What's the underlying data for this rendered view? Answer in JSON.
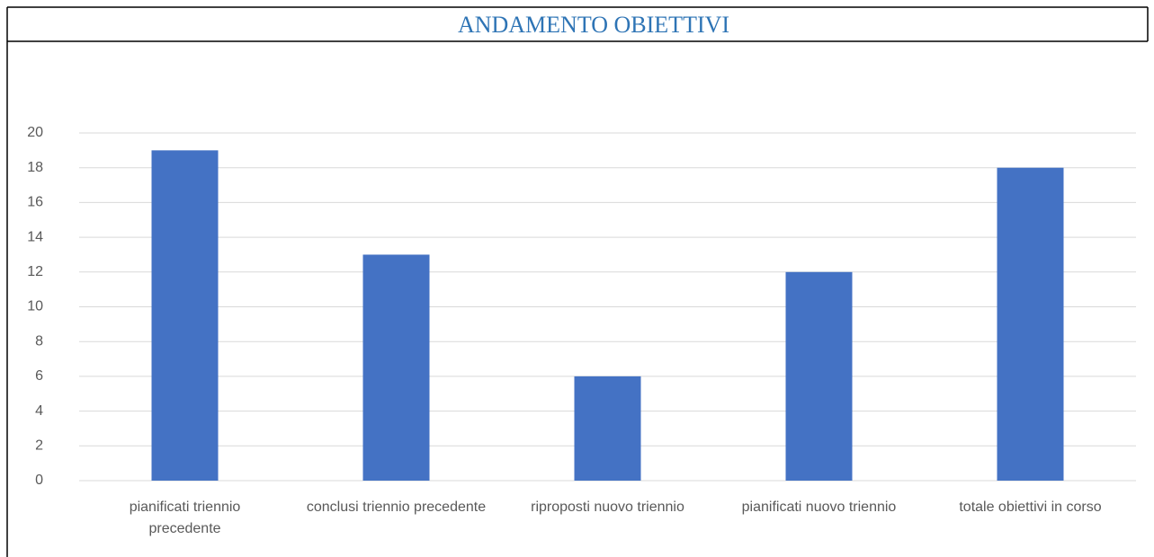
{
  "chart_data": {
    "type": "bar",
    "title": "ANDAMENTO OBIETTIVI",
    "categories": [
      "pianificati triennio precedente",
      "conclusi triennio precedente",
      "riproposti nuovo triennio",
      "pianificati nuovo triennio",
      "totale obiettivi in corso"
    ],
    "values": [
      19,
      13,
      6,
      12,
      18
    ],
    "color": "#4472c4",
    "ylim": [
      0,
      20
    ],
    "yticks": [
      0,
      2,
      4,
      6,
      8,
      10,
      12,
      14,
      16,
      18,
      20
    ],
    "grid": true
  }
}
